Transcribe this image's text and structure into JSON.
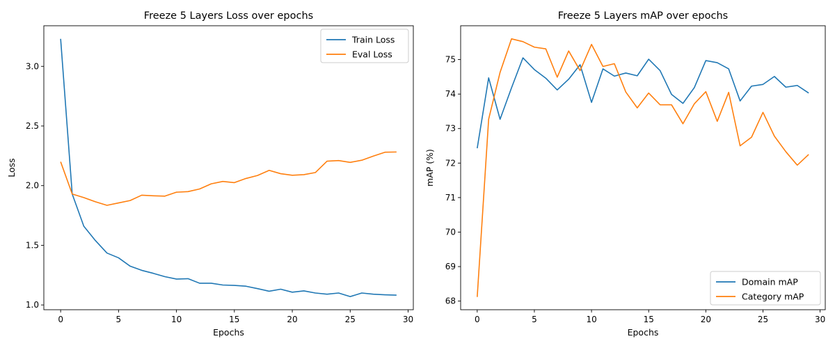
{
  "chart_data": [
    {
      "type": "line",
      "title": "Freeze 5 Layers Loss over epochs",
      "xlabel": "Epochs",
      "ylabel": "Loss",
      "xlim": [
        -1.45,
        30.45
      ],
      "ylim": [
        0.96,
        3.34
      ],
      "xticks": [
        0,
        5,
        10,
        15,
        20,
        25,
        30
      ],
      "yticks": [
        1.0,
        1.5,
        2.0,
        2.5,
        3.0
      ],
      "ytick_decimals": 1,
      "grid": false,
      "legend_position": "top-right",
      "x": [
        0,
        1,
        2,
        3,
        4,
        5,
        6,
        7,
        8,
        9,
        10,
        11,
        12,
        13,
        14,
        15,
        16,
        17,
        18,
        19,
        20,
        21,
        22,
        23,
        24,
        25,
        26,
        27,
        28,
        29
      ],
      "series": [
        {
          "name": "Train Loss",
          "color": "#1f77b4",
          "values": [
            3.23,
            1.93,
            1.66,
            1.54,
            1.435,
            1.395,
            1.325,
            1.29,
            1.265,
            1.237,
            1.217,
            1.22,
            1.182,
            1.182,
            1.167,
            1.164,
            1.157,
            1.137,
            1.115,
            1.132,
            1.107,
            1.118,
            1.1,
            1.09,
            1.1,
            1.07,
            1.1,
            1.09,
            1.085,
            1.082
          ]
        },
        {
          "name": "Eval Loss",
          "color": "#ff7f0e",
          "values": [
            2.2,
            1.93,
            1.9,
            1.865,
            1.835,
            1.855,
            1.875,
            1.92,
            1.915,
            1.912,
            1.945,
            1.95,
            1.972,
            2.015,
            2.035,
            2.025,
            2.06,
            2.085,
            2.128,
            2.1,
            2.087,
            2.092,
            2.11,
            2.205,
            2.21,
            2.195,
            2.213,
            2.248,
            2.28,
            2.282
          ]
        }
      ]
    },
    {
      "type": "line",
      "title": "Freeze 5 Layers mAP over epochs",
      "xlabel": "Epochs",
      "ylabel": "mAP (%)",
      "xlim": [
        -1.45,
        30.45
      ],
      "ylim": [
        67.75,
        75.98
      ],
      "xticks": [
        0,
        5,
        10,
        15,
        20,
        25,
        30
      ],
      "yticks": [
        68,
        69,
        70,
        71,
        72,
        73,
        74,
        75
      ],
      "ytick_decimals": 0,
      "grid": false,
      "legend_position": "bottom-right",
      "x": [
        0,
        1,
        2,
        3,
        4,
        5,
        6,
        7,
        8,
        9,
        10,
        11,
        12,
        13,
        14,
        15,
        16,
        17,
        18,
        19,
        20,
        21,
        22,
        23,
        24,
        25,
        26,
        27,
        28,
        29
      ],
      "series": [
        {
          "name": "Domain mAP",
          "color": "#1f77b4",
          "values": [
            72.43,
            74.47,
            73.27,
            74.18,
            75.05,
            74.71,
            74.46,
            74.12,
            74.43,
            74.85,
            73.76,
            74.73,
            74.52,
            74.61,
            74.53,
            75.01,
            74.68,
            73.99,
            73.73,
            74.19,
            74.97,
            74.91,
            74.73,
            73.8,
            74.23,
            74.28,
            74.51,
            74.2,
            74.25,
            74.03
          ]
        },
        {
          "name": "Category mAP",
          "color": "#ff7f0e",
          "values": [
            68.12,
            73.27,
            74.63,
            75.6,
            75.52,
            75.36,
            75.31,
            74.49,
            75.25,
            74.68,
            75.44,
            74.8,
            74.88,
            74.06,
            73.6,
            74.03,
            73.69,
            73.69,
            73.14,
            73.72,
            74.07,
            73.21,
            74.05,
            72.5,
            72.75,
            73.47,
            72.78,
            72.33,
            71.94,
            72.25
          ]
        }
      ]
    }
  ]
}
